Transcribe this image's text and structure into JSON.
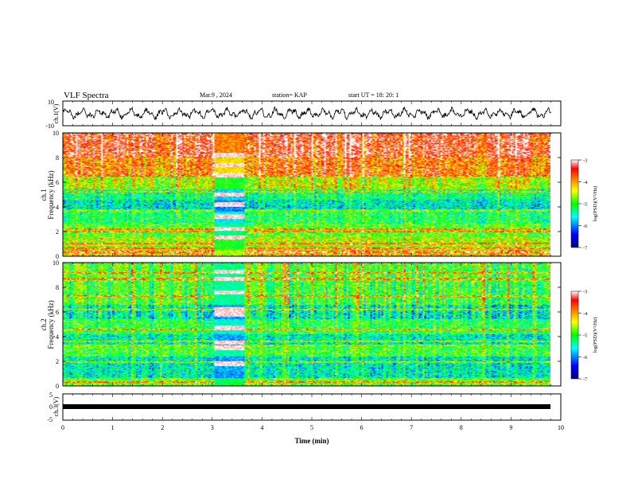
{
  "header": {
    "title": "VLF Spectra",
    "date": "Mar.9  , 2024",
    "station": "station= KAP",
    "start": "start  UT  =   18: 20: 1"
  },
  "chart_data": [
    {
      "type": "line",
      "panel": "ch1-waveform",
      "ylabel": "ch.1(V)",
      "ylim": [
        -10,
        10
      ],
      "yticks": [
        "10",
        "-10"
      ],
      "x_range_min": [
        0,
        9.8
      ],
      "trace": "noisy oscillation, amplitude ~ ±4 V"
    },
    {
      "type": "heatmap",
      "panel": "ch1-spectrogram",
      "ylabel": "ch.1",
      "ylabel2": "Frequency (kHz)",
      "ylim": [
        0,
        10
      ],
      "yticks": [
        "0",
        "2",
        "4",
        "6",
        "8",
        "10"
      ],
      "x_range_min": [
        0,
        9.8
      ],
      "colorbar": {
        "label": "log(PSD)(V²/Hz)",
        "range": [
          -7,
          -3
        ],
        "ticks": [
          "-3",
          "-4",
          "-5",
          "-6",
          "-7"
        ],
        "colors": [
          "#000080",
          "#0000ff",
          "#00ffff",
          "#00ff00",
          "#ffff00",
          "#ff8000",
          "#ff0000",
          "#ffffff"
        ]
      },
      "bands_khz": [
        {
          "from": 0.0,
          "to": 0.5,
          "level": -4.2
        },
        {
          "from": 0.5,
          "to": 1.5,
          "level": -4.6
        },
        {
          "from": 1.5,
          "to": 2.6,
          "level": -4.9
        },
        {
          "from": 2.6,
          "to": 3.6,
          "level": -5.2
        },
        {
          "from": 3.6,
          "to": 4.6,
          "level": -5.6
        },
        {
          "from": 4.6,
          "to": 5.4,
          "level": -5.3
        },
        {
          "from": 5.4,
          "to": 6.6,
          "level": -4.6
        },
        {
          "from": 6.6,
          "to": 8.0,
          "level": -3.9
        },
        {
          "from": 8.0,
          "to": 10.0,
          "level": -3.5
        }
      ],
      "lines_khz": [
        0.3,
        0.6,
        1.0,
        2.0,
        2.2,
        3.7,
        5.2,
        6.5
      ],
      "disturbance": {
        "t_from": 3.05,
        "t_to": 3.65,
        "lines_khz": [
          1.5,
          2.2,
          3.2,
          4.2,
          5.0,
          6.6,
          7.4,
          8.2
        ]
      }
    },
    {
      "type": "heatmap",
      "panel": "ch2-spectrogram",
      "ylabel": "ch.2",
      "ylabel2": "Frequency (kHz)",
      "ylim": [
        0,
        10
      ],
      "yticks": [
        "0",
        "2",
        "4",
        "6",
        "8",
        "10"
      ],
      "x_range_min": [
        0,
        9.8
      ],
      "colorbar": {
        "label": "log(PSD)(V²/Hz)",
        "range": [
          -7,
          -3
        ],
        "ticks": [
          "-3",
          "-4",
          "-5",
          "-6",
          "-7"
        ],
        "colors": [
          "#000080",
          "#0000ff",
          "#00ffff",
          "#00ff00",
          "#ffff00",
          "#ff8000",
          "#ff0000",
          "#ffffff"
        ]
      },
      "bands_khz": [
        {
          "from": 0.0,
          "to": 0.6,
          "level": -4.8
        },
        {
          "from": 0.6,
          "to": 2.4,
          "level": -5.5
        },
        {
          "from": 2.4,
          "to": 3.2,
          "level": -5.0
        },
        {
          "from": 3.2,
          "to": 4.2,
          "level": -5.5
        },
        {
          "from": 4.2,
          "to": 5.4,
          "level": -5.1
        },
        {
          "from": 5.4,
          "to": 6.6,
          "level": -5.5
        },
        {
          "from": 6.6,
          "to": 8.5,
          "level": -5.0
        },
        {
          "from": 8.5,
          "to": 10.0,
          "level": -4.9
        }
      ],
      "lines_khz": [
        0.3,
        1.9,
        3.3,
        3.6,
        4.6,
        6.2,
        7.3,
        8.7,
        9.2
      ],
      "disturbance": {
        "t_from": 3.05,
        "t_to": 3.65,
        "lines_khz": [
          1.8,
          3.1,
          3.5,
          4.7,
          5.8,
          6.2,
          7.6,
          8.7,
          9.3
        ]
      }
    },
    {
      "type": "line",
      "panel": "ch3-waveform",
      "ylabel": "ch.3(V)",
      "ylim": [
        -5,
        5
      ],
      "yticks": [
        "5",
        "0",
        "-5"
      ],
      "x_range_min": [
        0,
        9.8
      ],
      "trace": "thick band near 0 V"
    }
  ],
  "xaxis": {
    "label": "Time  (min)",
    "range": [
      0,
      10
    ],
    "ticks": [
      "0",
      "1",
      "2",
      "3",
      "4",
      "5",
      "6",
      "7",
      "8",
      "9",
      "10"
    ]
  }
}
